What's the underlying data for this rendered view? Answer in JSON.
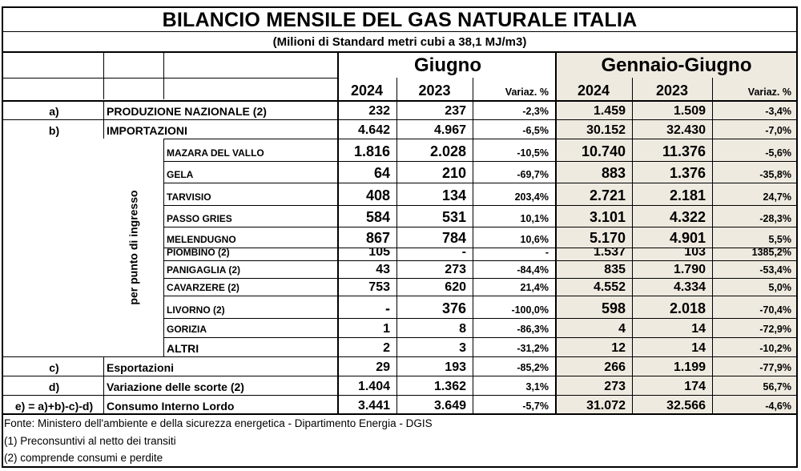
{
  "header": {
    "title": "BILANCIO MENSILE DEL GAS NATURALE ITALIA",
    "subtitle": "(Milioni di Standard metri cubi a 38,1 MJ/m3)",
    "month_group": "Giugno",
    "cumulative_group": "Gennaio-Giugno",
    "col_2024": "2024",
    "col_2023": "2023",
    "col_var": "Variaz. %"
  },
  "side_label": "per punto di ingresso",
  "rows": [
    {
      "code": "a)",
      "label": "PRODUZIONE NAZIONALE (2)",
      "m24": "232",
      "m23": "237",
      "mvar": "-2,3%",
      "c24": "1.459",
      "c23": "1.509",
      "cvar": "-3,4%"
    },
    {
      "code": "b)",
      "label": "IMPORTAZIONI",
      "m24": "4.642",
      "m23": "4.967",
      "mvar": "-6,5%",
      "c24": "30.152",
      "c23": "32.430",
      "cvar": "-7,0%"
    },
    {
      "label": "MAZARA DEL VALLO",
      "m24": "1.816",
      "m23": "2.028",
      "mvar": "-10,5%",
      "c24": "10.740",
      "c23": "11.376",
      "cvar": "-5,6%"
    },
    {
      "label": "GELA",
      "m24": "64",
      "m23": "210",
      "mvar": "-69,7%",
      "c24": "883",
      "c23": "1.376",
      "cvar": "-35,8%"
    },
    {
      "label": "TARVISIO",
      "m24": "408",
      "m23": "134",
      "mvar": "203,4%",
      "c24": "2.721",
      "c23": "2.181",
      "cvar": "24,7%"
    },
    {
      "label": "PASSO GRIES",
      "m24": "584",
      "m23": "531",
      "mvar": "10,1%",
      "c24": "3.101",
      "c23": "4.322",
      "cvar": "-28,3%"
    },
    {
      "label": "MELENDUGNO",
      "m24": "867",
      "m23": "784",
      "mvar": "10,6%",
      "c24": "5.170",
      "c23": "4.901",
      "cvar": "5,5%"
    },
    {
      "label": "PIOMBINO (2)",
      "m24": "105",
      "m23": "-",
      "mvar": "-",
      "c24": "1.537",
      "c23": "103",
      "cvar": "1385,2%"
    },
    {
      "label": "PANIGAGLIA (2)",
      "m24": "43",
      "m23": "273",
      "mvar": "-84,4%",
      "c24": "835",
      "c23": "1.790",
      "cvar": "-53,4%"
    },
    {
      "label": "CAVARZERE (2)",
      "m24": "753",
      "m23": "620",
      "mvar": "21,4%",
      "c24": "4.552",
      "c23": "4.334",
      "cvar": "5,0%"
    },
    {
      "label": "LIVORNO (2)",
      "m24": "-",
      "m23": "376",
      "mvar": "-100,0%",
      "c24": "598",
      "c23": "2.018",
      "cvar": "-70,4%"
    },
    {
      "label": "GORIZIA",
      "m24": "1",
      "m23": "8",
      "mvar": "-86,3%",
      "c24": "4",
      "c23": "14",
      "cvar": "-72,9%"
    },
    {
      "label": "ALTRI",
      "m24": "2",
      "m23": "3",
      "mvar": "-31,2%",
      "c24": "12",
      "c23": "14",
      "cvar": "-10,2%"
    },
    {
      "code": "c)",
      "label": "Esportazioni",
      "m24": "29",
      "m23": "193",
      "mvar": "-85,2%",
      "c24": "266",
      "c23": "1.199",
      "cvar": "-77,9%"
    },
    {
      "code": "d)",
      "label": "Variazione delle scorte (2)",
      "m24": "1.404",
      "m23": "1.362",
      "mvar": "3,1%",
      "c24": "273",
      "c23": "174",
      "cvar": "56,7%"
    },
    {
      "code": "e) = a)+b)-c)-d)",
      "label": "Consumo Interno Lordo",
      "m24": "3.441",
      "m23": "3.649",
      "mvar": "-5,7%",
      "c24": "31.072",
      "c23": "32.566",
      "cvar": "-4,6%"
    }
  ],
  "footer": {
    "source": "Fonte: Ministero dell'ambiente e della sicurezza energetica - Dipartimento Energia - DGIS",
    "note1": "(1) Preconsuntivi al netto dei transiti",
    "note2": "(2) comprende consumi e perdite"
  },
  "colors": {
    "shaded_background": "#eeeae0",
    "border": "#000000"
  }
}
